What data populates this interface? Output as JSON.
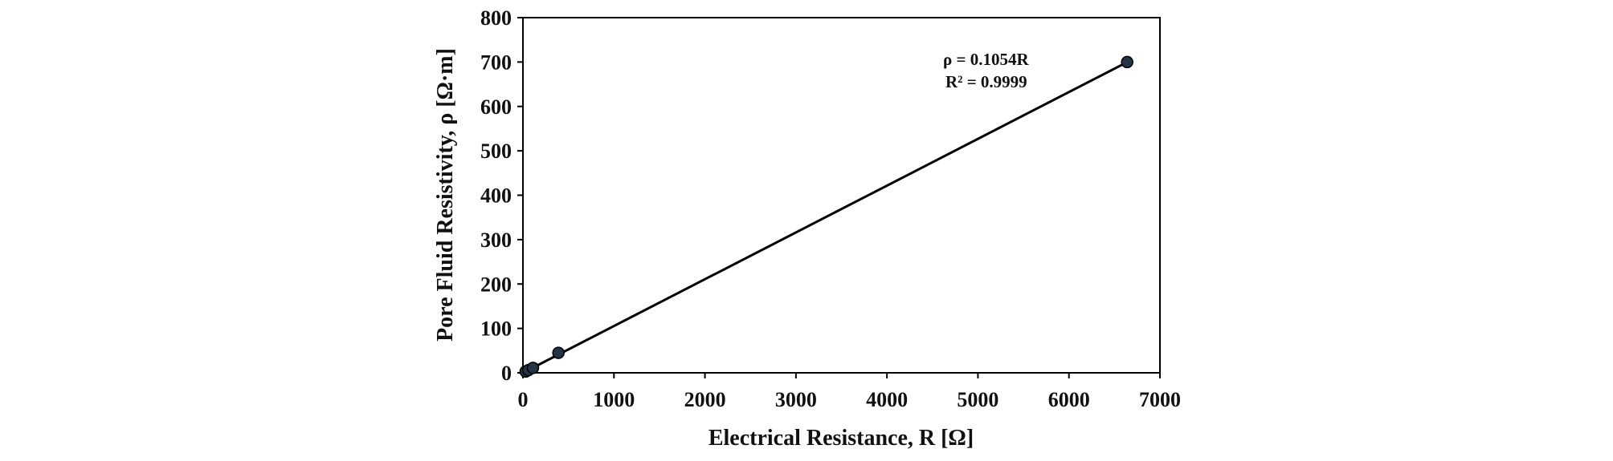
{
  "chart_data": {
    "type": "scatter",
    "xlabel": "Electrical Resistance, R [Ω]",
    "ylabel": "Pore Fluid Resistivity,  ρ [Ω·m]",
    "xlim": [
      0,
      7000
    ],
    "ylim": [
      0,
      800
    ],
    "x_ticks": [
      "0",
      "1000",
      "2000",
      "3000",
      "4000",
      "5000",
      "6000",
      "7000"
    ],
    "y_ticks": [
      "0",
      "100",
      "200",
      "300",
      "400",
      "500",
      "600",
      "700",
      "800"
    ],
    "grid": false,
    "points": [
      {
        "x": 30,
        "y": 3
      },
      {
        "x": 60,
        "y": 6
      },
      {
        "x": 110,
        "y": 11
      },
      {
        "x": 390,
        "y": 45
      },
      {
        "x": 6640,
        "y": 700
      }
    ],
    "trendline": {
      "slope": 0.1054,
      "intercept": 0,
      "x_range": [
        0,
        6640
      ]
    },
    "annotations": {
      "equation": "ρ = 0.1054R",
      "r_squared": "R² = 0.9999"
    },
    "colors": {
      "marker_fill": "#243447",
      "marker_edge": "#000000",
      "line": "#000000",
      "frame": "#000000"
    }
  }
}
